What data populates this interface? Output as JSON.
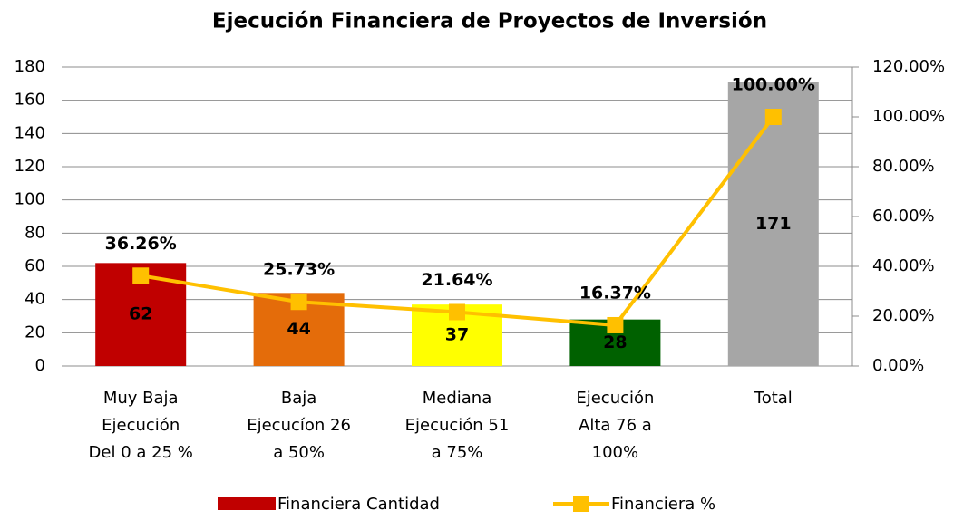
{
  "chart_data": {
    "type": "bar_line",
    "title": "Ejecución Financiera de Proyectos de Inversión",
    "categories": [
      "Muy Baja\nEjecución\nDel 0 a 25 %",
      "Baja\nEjecucíon 26\na 50%",
      "Mediana\nEjecución  51\na 75%",
      "Ejecución\nAlta 76 a\n100%",
      "Total"
    ],
    "series": [
      {
        "name": "Financiera Cantidad",
        "type": "bar",
        "color": "#c00000",
        "colors": [
          "#c00000",
          "#e46c0a",
          "#ffff00",
          "#006100",
          "#a6a6a6"
        ],
        "values": [
          62,
          44,
          37,
          28,
          171
        ]
      },
      {
        "name": "Financiera %",
        "type": "line",
        "axis": "y2",
        "color": "#ffc000",
        "values": [
          36.26,
          25.73,
          21.64,
          16.37,
          100
        ],
        "value_labels": [
          "36.26%",
          "25.73%",
          "21.64%",
          "16.37%",
          "100.00%"
        ]
      }
    ],
    "ylim": [
      0,
      180
    ],
    "yticks": [
      0,
      20,
      40,
      60,
      80,
      100,
      120,
      140,
      160,
      180
    ],
    "y2lim": [
      0,
      120
    ],
    "y2ticks": [
      {
        "value": 0,
        "label": "0.00%"
      },
      {
        "value": 20,
        "label": "20.00%"
      },
      {
        "value": 40,
        "label": "40.00%"
      },
      {
        "value": 60,
        "label": "60.00%"
      },
      {
        "value": 80,
        "label": "80.00%"
      },
      {
        "value": 100,
        "label": "100.00%"
      },
      {
        "value": 120,
        "label": "120.00%"
      }
    ],
    "grid": true,
    "legend": "bottom"
  }
}
